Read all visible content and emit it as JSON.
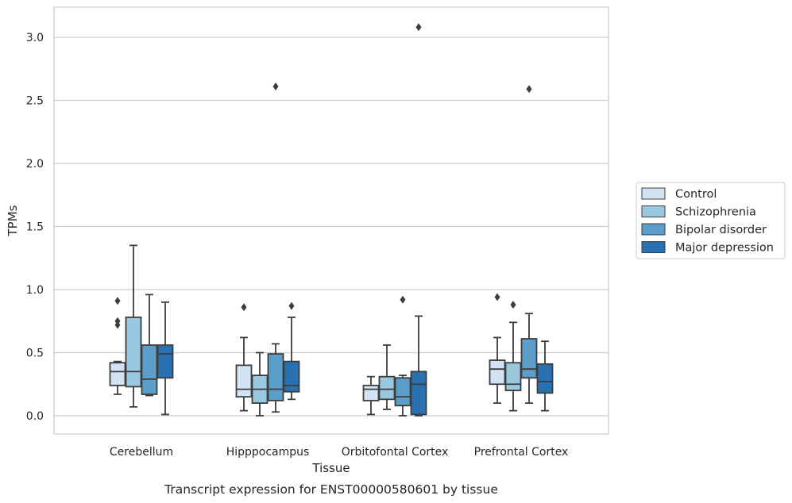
{
  "chart_data": {
    "type": "box",
    "xlabel": "Tissue",
    "ylabel": "TPMs",
    "caption": "Transcript expression for ENST00000580601 by tissue",
    "categories": [
      "Cerebellum",
      "Hipppocampus",
      "Orbitofontal Cortex",
      "Prefrontal Cortex"
    ],
    "ylim": [
      -0.15,
      3.25
    ],
    "yticks": [
      0.0,
      0.5,
      1.0,
      1.5,
      2.0,
      2.5,
      3.0
    ],
    "ytick_labels": [
      "0.0",
      "0.5",
      "1.0",
      "1.5",
      "2.0",
      "2.5",
      "3.0"
    ],
    "grid": "horizontal",
    "legend_position": "right",
    "series": [
      {
        "name": "Control",
        "color": "#d2e3f3",
        "boxes": [
          {
            "whislo": 0.17,
            "q1": 0.24,
            "med": 0.35,
            "q3": 0.42,
            "whishi": 0.43,
            "fliers": [
              0.91,
              0.75,
              0.72
            ]
          },
          {
            "whislo": 0.04,
            "q1": 0.15,
            "med": 0.21,
            "q3": 0.4,
            "whishi": 0.62,
            "fliers": [
              0.86
            ]
          },
          {
            "whislo": 0.01,
            "q1": 0.12,
            "med": 0.21,
            "q3": 0.24,
            "whishi": 0.31,
            "fliers": []
          },
          {
            "whislo": 0.1,
            "q1": 0.25,
            "med": 0.37,
            "q3": 0.44,
            "whishi": 0.62,
            "fliers": [
              0.94
            ]
          }
        ]
      },
      {
        "name": "Schizophrenia",
        "color": "#9ac8e0",
        "boxes": [
          {
            "whislo": 0.07,
            "q1": 0.23,
            "med": 0.35,
            "q3": 0.78,
            "whishi": 1.35,
            "fliers": []
          },
          {
            "whislo": 0.0,
            "q1": 0.1,
            "med": 0.21,
            "q3": 0.32,
            "whishi": 0.5,
            "fliers": []
          },
          {
            "whislo": 0.05,
            "q1": 0.13,
            "med": 0.21,
            "q3": 0.31,
            "whishi": 0.56,
            "fliers": []
          },
          {
            "whislo": 0.04,
            "q1": 0.2,
            "med": 0.25,
            "q3": 0.42,
            "whishi": 0.74,
            "fliers": [
              0.88
            ]
          }
        ]
      },
      {
        "name": "Bipolar disorder",
        "color": "#5a9ec9",
        "boxes": [
          {
            "whislo": 0.16,
            "q1": 0.17,
            "med": 0.29,
            "q3": 0.56,
            "whishi": 0.96,
            "fliers": []
          },
          {
            "whislo": 0.03,
            "q1": 0.12,
            "med": 0.21,
            "q3": 0.49,
            "whishi": 0.57,
            "fliers": [
              2.61
            ]
          },
          {
            "whislo": 0.0,
            "q1": 0.08,
            "med": 0.15,
            "q3": 0.3,
            "whishi": 0.32,
            "fliers": [
              0.92
            ]
          },
          {
            "whislo": 0.1,
            "q1": 0.3,
            "med": 0.37,
            "q3": 0.61,
            "whishi": 0.81,
            "fliers": [
              2.59
            ]
          }
        ]
      },
      {
        "name": "Major depression",
        "color": "#2a71b2",
        "boxes": [
          {
            "whislo": 0.01,
            "q1": 0.3,
            "med": 0.49,
            "q3": 0.56,
            "whishi": 0.9,
            "fliers": []
          },
          {
            "whislo": 0.13,
            "q1": 0.19,
            "med": 0.24,
            "q3": 0.43,
            "whishi": 0.78,
            "fliers": [
              0.87
            ]
          },
          {
            "whislo": 0.0,
            "q1": 0.01,
            "med": 0.25,
            "q3": 0.35,
            "whishi": 0.79,
            "fliers": [
              3.08
            ]
          },
          {
            "whislo": 0.04,
            "q1": 0.18,
            "med": 0.27,
            "q3": 0.41,
            "whishi": 0.59,
            "fliers": []
          }
        ]
      }
    ]
  }
}
